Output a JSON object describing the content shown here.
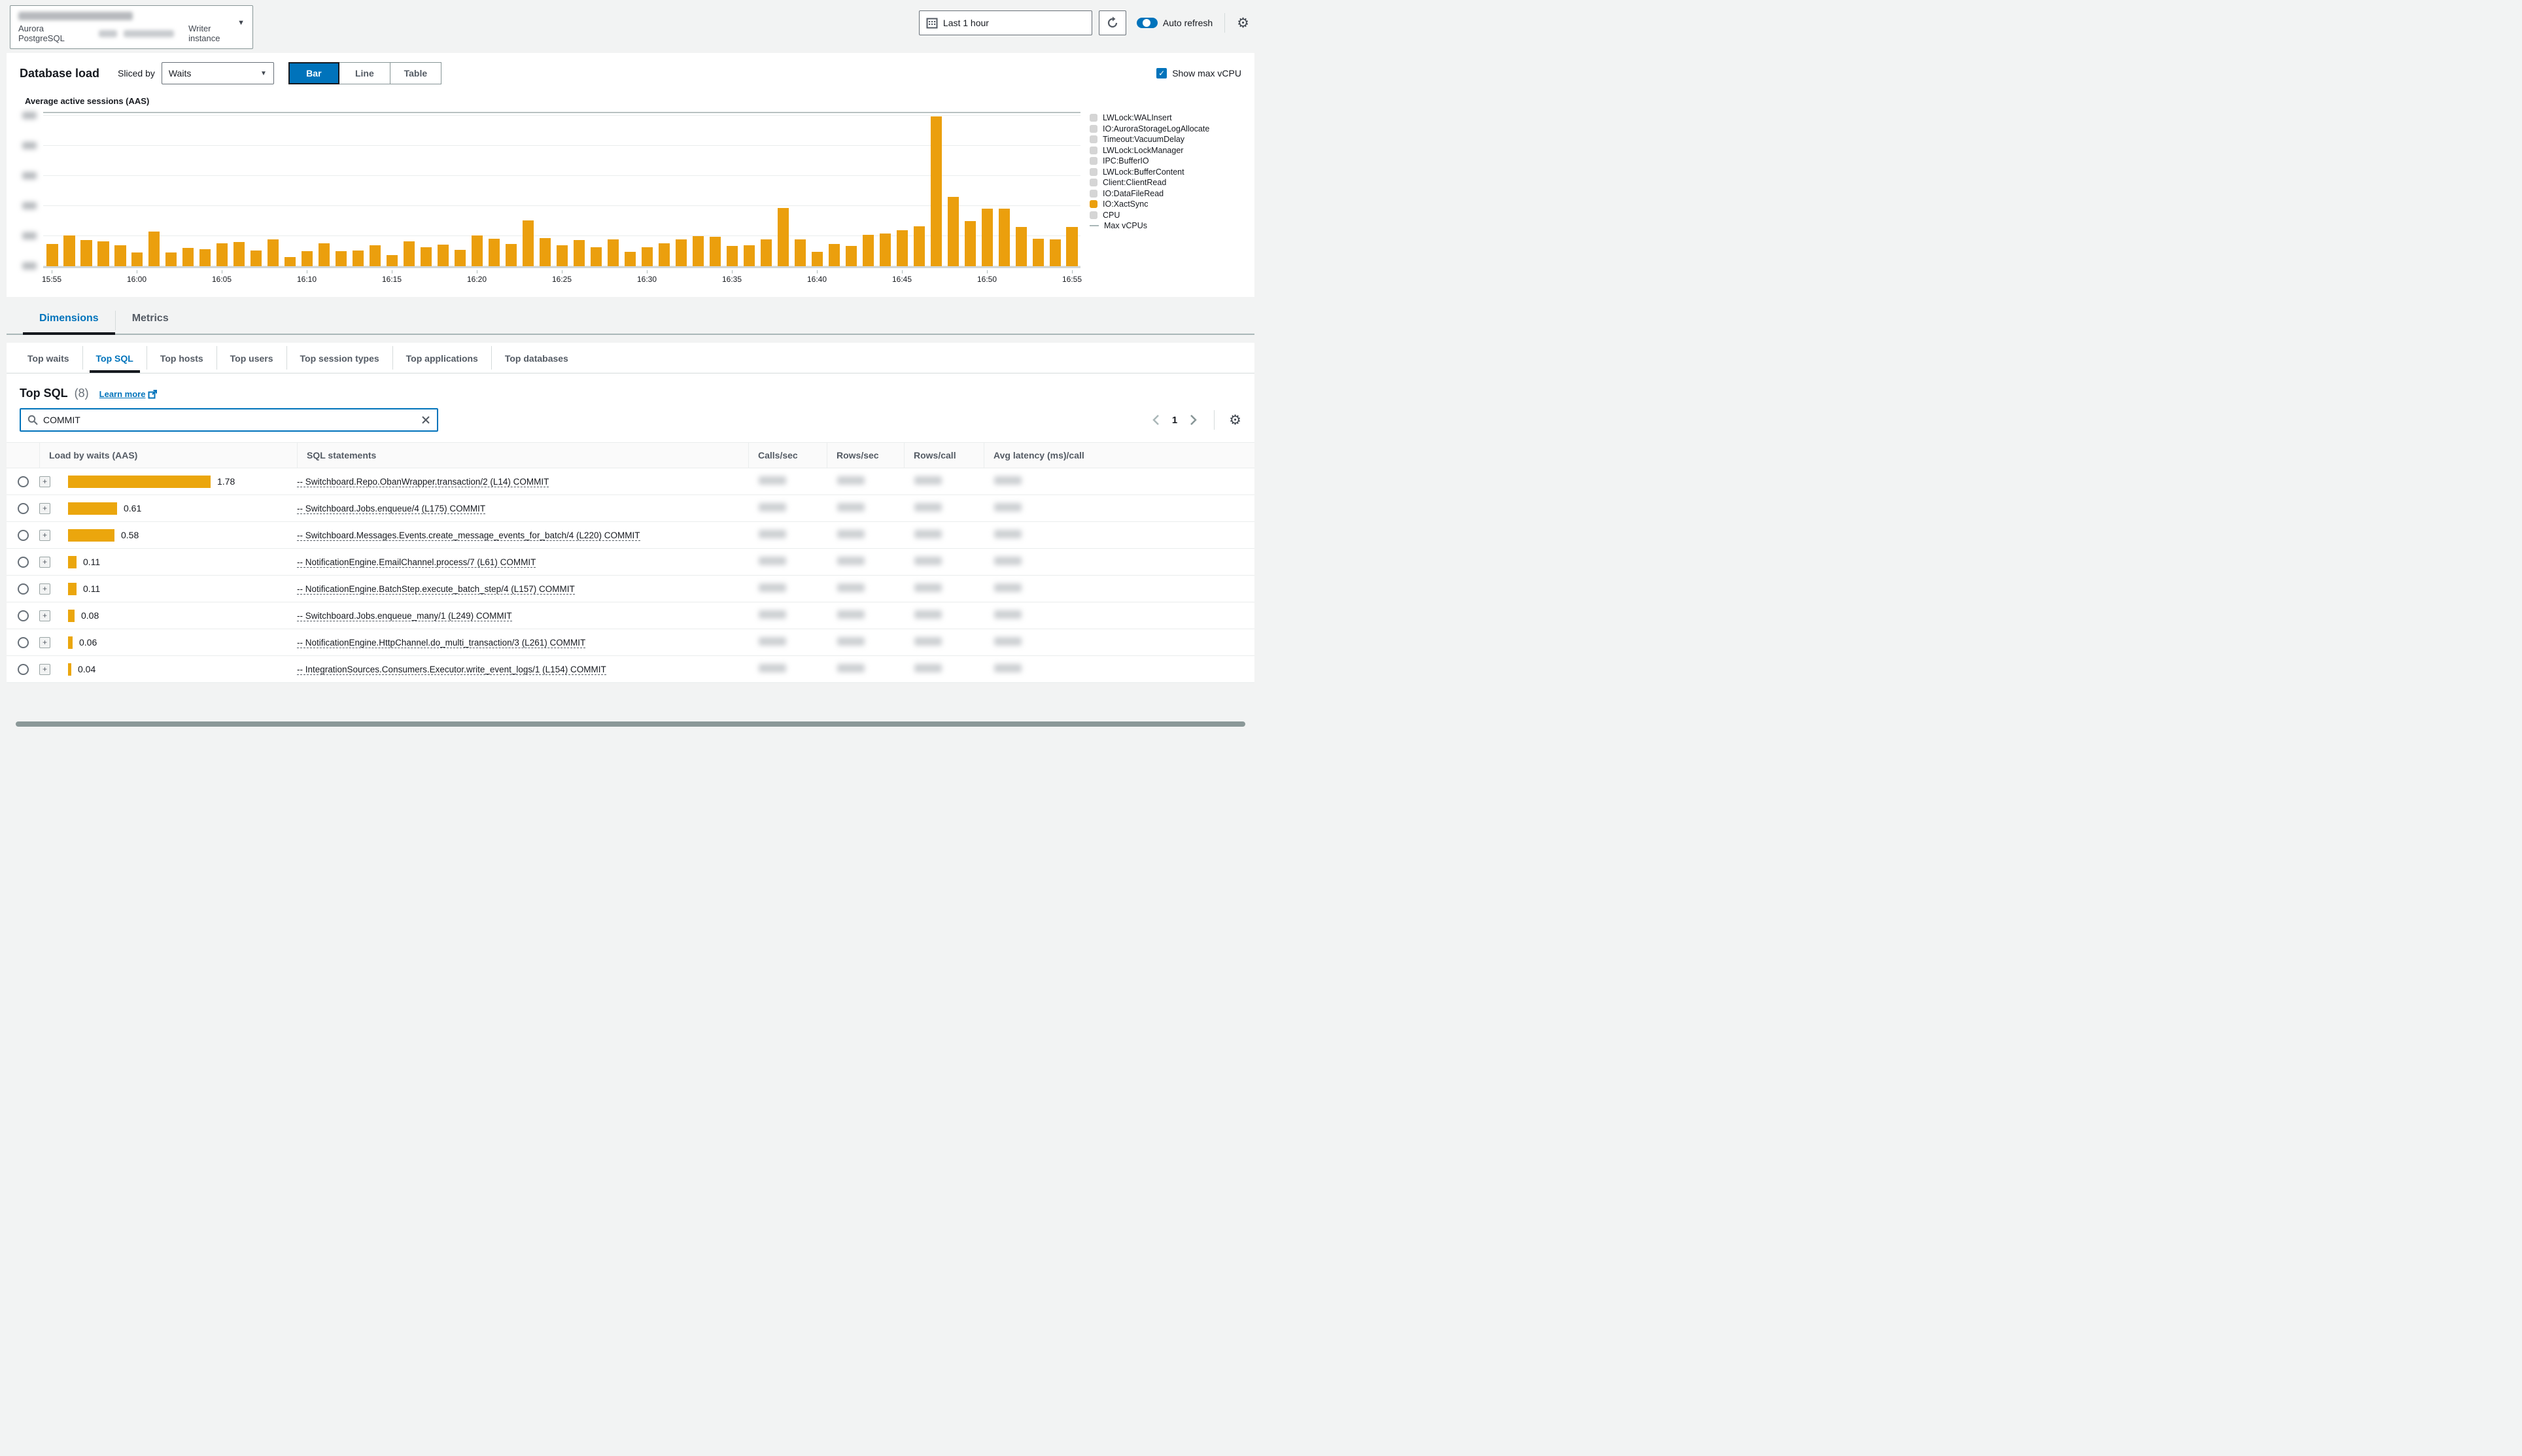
{
  "header": {
    "instance": {
      "name_redacted": true,
      "engine": "Aurora PostgreSQL",
      "detail_redacted": true,
      "role": "Writer instance"
    },
    "time_range_value": "Last 1 hour",
    "auto_refresh_label": "Auto refresh"
  },
  "load_panel": {
    "title": "Database load",
    "sliced_by_label": "Sliced by",
    "slice_value": "Waits",
    "view_options": [
      "Bar",
      "Line",
      "Table"
    ],
    "active_view": "Bar",
    "show_max_vcpu_label": "Show max vCPU"
  },
  "chart_data": {
    "type": "bar",
    "title": "Average active sessions (AAS)",
    "x_start": "15:55",
    "x_interval_minutes": 1,
    "x_tick_labels": [
      "15:55",
      "16:00",
      "16:05",
      "16:10",
      "16:15",
      "16:20",
      "16:25",
      "16:30",
      "16:35",
      "16:40",
      "16:45",
      "16:50",
      "16:55"
    ],
    "values": [
      3.7,
      5.1,
      4.3,
      4.1,
      3.5,
      2.3,
      5.7,
      2.3,
      3.0,
      2.8,
      3.8,
      4.0,
      2.6,
      4.4,
      1.5,
      2.5,
      3.8,
      2.5,
      2.6,
      3.5,
      1.8,
      4.1,
      3.1,
      3.6,
      2.7,
      5.1,
      4.6,
      3.7,
      7.6,
      4.7,
      3.5,
      4.3,
      3.2,
      4.5,
      2.4,
      3.2,
      3.8,
      4.4,
      5.0,
      4.9,
      3.4,
      3.5,
      4.4,
      9.7,
      4.4,
      2.4,
      3.7,
      3.4,
      5.2,
      5.4,
      6.0,
      6.6,
      24.8,
      11.5,
      7.5,
      9.6,
      9.6,
      6.5,
      4.6,
      4.4,
      6.5
    ],
    "ylim": [
      0,
      25.5
    ],
    "gridline_step": 5,
    "y_axis_labels_redacted": true,
    "max_vcpus_value": 25.35,
    "series_color": "#eb9f0d",
    "inactive_swatch_color": "#d5d5d5",
    "legend_position": "right",
    "legend": [
      {
        "label": "LWLock:WALInsert",
        "active": false
      },
      {
        "label": "IO:AuroraStorageLogAllocate",
        "active": false
      },
      {
        "label": "Timeout:VacuumDelay",
        "active": false
      },
      {
        "label": "LWLock:LockManager",
        "active": false
      },
      {
        "label": "IPC:BufferIO",
        "active": false
      },
      {
        "label": "LWLock:BufferContent",
        "active": false
      },
      {
        "label": "Client:ClientRead",
        "active": false
      },
      {
        "label": "IO:DataFileRead",
        "active": false
      },
      {
        "label": "IO:XactSync",
        "active": true
      },
      {
        "label": "CPU",
        "active": false
      },
      {
        "label": "Max vCPUs",
        "active": false,
        "line": true
      }
    ]
  },
  "main_tabs": {
    "items": [
      "Dimensions",
      "Metrics"
    ],
    "active": "Dimensions"
  },
  "dimension_tabs": {
    "items": [
      "Top waits",
      "Top SQL",
      "Top hosts",
      "Top users",
      "Top session types",
      "Top applications",
      "Top databases"
    ],
    "active": "Top SQL"
  },
  "top_sql": {
    "title": "Top SQL",
    "count": "(8)",
    "learn_more_label": "Learn more",
    "search_value": "COMMIT",
    "page_number": "1",
    "columns": [
      "Load by waits (AAS)",
      "SQL statements",
      "Calls/sec",
      "Rows/sec",
      "Rows/call",
      "Avg latency (ms)/call"
    ],
    "metric_values_redacted": true,
    "max_load": 1.78,
    "rows": [
      {
        "load": 1.78,
        "load_label": "1.78",
        "sql": "-- Switchboard.Repo.ObanWrapper.transaction/2 (L14) COMMIT"
      },
      {
        "load": 0.61,
        "load_label": "0.61",
        "sql": "-- Switchboard.Jobs.enqueue/4 (L175) COMMIT"
      },
      {
        "load": 0.58,
        "load_label": "0.58",
        "sql": "-- Switchboard.Messages.Events.create_message_events_for_batch/4 (L220) COMMIT"
      },
      {
        "load": 0.11,
        "load_label": "0.11",
        "sql": "-- NotificationEngine.EmailChannel.process/7 (L61) COMMIT"
      },
      {
        "load": 0.11,
        "load_label": "0.11",
        "sql": "-- NotificationEngine.BatchStep.execute_batch_step/4 (L157) COMMIT"
      },
      {
        "load": 0.08,
        "load_label": "0.08",
        "sql": "-- Switchboard.Jobs.enqueue_many/1 (L249) COMMIT"
      },
      {
        "load": 0.06,
        "load_label": "0.06",
        "sql": "-- NotificationEngine.HttpChannel.do_multi_transaction/3 (L261) COMMIT"
      },
      {
        "load": 0.04,
        "load_label": "0.04",
        "sql": "-- IntegrationSources.Consumers.Executor.write_event_logs/1 (L154) COMMIT"
      }
    ]
  },
  "colors": {
    "accent": "#0073bb",
    "bar_orange": "#eb9f0d",
    "active_underline": "#16191f",
    "legend_gray": "#d5d5d5"
  }
}
